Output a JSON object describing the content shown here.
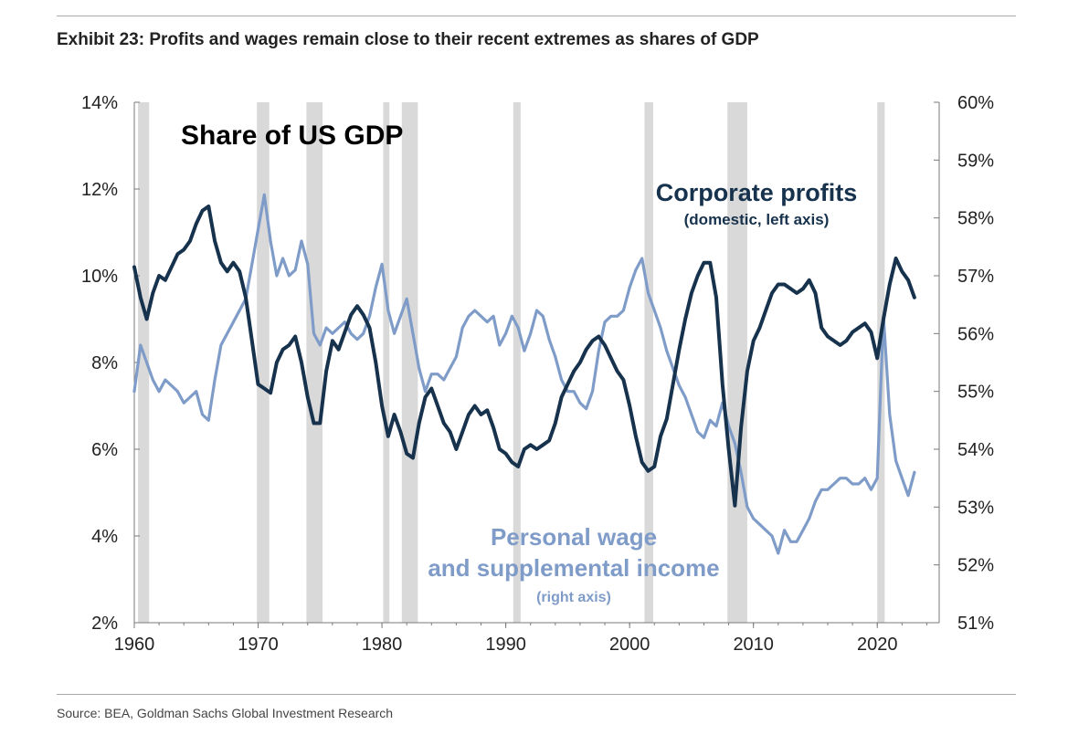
{
  "exhibit_title": "Exhibit 23: Profits and wages remain close to their recent extremes as shares of GDP",
  "source": "Source: BEA, Goldman Sachs Global Investment Research",
  "chart_data": {
    "type": "line",
    "title": "Share of US GDP",
    "x_range": [
      1960,
      2025
    ],
    "x_ticks": [
      "1960",
      "1970",
      "1980",
      "1990",
      "2000",
      "2010",
      "2020"
    ],
    "y_left_range": [
      2,
      14
    ],
    "y_left_ticks": [
      "2%",
      "4%",
      "6%",
      "8%",
      "10%",
      "12%",
      "14%"
    ],
    "y_right_range": [
      51,
      60
    ],
    "y_right_ticks": [
      "51%",
      "52%",
      "53%",
      "54%",
      "55%",
      "56%",
      "57%",
      "58%",
      "59%",
      "60%"
    ],
    "recessions": [
      [
        1960.3,
        1961.2
      ],
      [
        1969.9,
        1970.9
      ],
      [
        1973.9,
        1975.2
      ],
      [
        1980.1,
        1980.6
      ],
      [
        1981.6,
        1982.9
      ],
      [
        1990.6,
        1991.2
      ],
      [
        2001.2,
        2001.9
      ],
      [
        2007.9,
        2009.5
      ],
      [
        2020.0,
        2020.6
      ]
    ],
    "colors": {
      "profits": "#17324d",
      "wages": "#7f9cc9",
      "recession": "#d9d9d9",
      "axis": "#7a7a7a"
    },
    "series": [
      {
        "name": "Corporate profits",
        "sublabel": "(domestic, left axis)",
        "axis": "left",
        "x": [
          1960.0,
          1960.5,
          1961.0,
          1961.5,
          1962.0,
          1962.5,
          1963.0,
          1963.5,
          1964.0,
          1964.5,
          1965.0,
          1965.5,
          1966.0,
          1966.5,
          1967.0,
          1967.5,
          1968.0,
          1968.5,
          1969.0,
          1969.5,
          1970.0,
          1970.5,
          1971.0,
          1971.5,
          1972.0,
          1972.5,
          1973.0,
          1973.5,
          1974.0,
          1974.5,
          1975.0,
          1975.5,
          1976.0,
          1976.5,
          1977.0,
          1977.5,
          1978.0,
          1978.5,
          1979.0,
          1979.5,
          1980.0,
          1980.5,
          1981.0,
          1981.5,
          1982.0,
          1982.5,
          1983.0,
          1983.5,
          1984.0,
          1984.5,
          1985.0,
          1985.5,
          1986.0,
          1986.5,
          1987.0,
          1987.5,
          1988.0,
          1988.5,
          1989.0,
          1989.5,
          1990.0,
          1990.5,
          1991.0,
          1991.5,
          1992.0,
          1992.5,
          1993.0,
          1993.5,
          1994.0,
          1994.5,
          1995.0,
          1995.5,
          1996.0,
          1996.5,
          1997.0,
          1997.5,
          1998.0,
          1998.5,
          1999.0,
          1999.5,
          2000.0,
          2000.5,
          2001.0,
          2001.5,
          2002.0,
          2002.5,
          2003.0,
          2003.5,
          2004.0,
          2004.5,
          2005.0,
          2005.5,
          2006.0,
          2006.5,
          2007.0,
          2007.5,
          2008.0,
          2008.5,
          2009.0,
          2009.5,
          2010.0,
          2010.5,
          2011.0,
          2011.5,
          2012.0,
          2012.5,
          2013.0,
          2013.5,
          2014.0,
          2014.5,
          2015.0,
          2015.5,
          2016.0,
          2016.5,
          2017.0,
          2017.5,
          2018.0,
          2018.5,
          2019.0,
          2019.5,
          2020.0,
          2020.5,
          2021.0,
          2021.5,
          2022.0,
          2022.5,
          2023.0
        ],
        "values": [
          10.2,
          9.5,
          9.0,
          9.6,
          10.0,
          9.9,
          10.2,
          10.5,
          10.6,
          10.8,
          11.2,
          11.5,
          11.6,
          10.8,
          10.3,
          10.1,
          10.3,
          10.1,
          9.5,
          8.5,
          7.5,
          7.4,
          7.3,
          8.0,
          8.3,
          8.4,
          8.6,
          8.0,
          7.2,
          6.6,
          6.6,
          7.8,
          8.5,
          8.3,
          8.7,
          9.1,
          9.3,
          9.1,
          8.8,
          8.0,
          7.0,
          6.3,
          6.8,
          6.4,
          5.9,
          5.8,
          6.6,
          7.2,
          7.4,
          7.0,
          6.6,
          6.4,
          6.0,
          6.4,
          6.8,
          7.0,
          6.8,
          6.9,
          6.5,
          6.0,
          5.9,
          5.7,
          5.6,
          6.0,
          6.1,
          6.0,
          6.1,
          6.2,
          6.6,
          7.2,
          7.5,
          7.8,
          8.0,
          8.3,
          8.5,
          8.6,
          8.4,
          8.1,
          7.8,
          7.6,
          7.0,
          6.3,
          5.7,
          5.5,
          5.6,
          6.3,
          6.7,
          7.5,
          8.3,
          9.0,
          9.6,
          10.0,
          10.3,
          10.3,
          9.5,
          7.5,
          6.0,
          4.7,
          6.5,
          7.8,
          8.5,
          8.8,
          9.2,
          9.6,
          9.8,
          9.8,
          9.7,
          9.6,
          9.7,
          9.9,
          9.6,
          8.8,
          8.6,
          8.5,
          8.4,
          8.5,
          8.7,
          8.8,
          8.9,
          8.7,
          8.1,
          9.0,
          9.8,
          10.4,
          10.1,
          9.9,
          9.5
        ]
      },
      {
        "name": "Personal wage",
        "name_line2": "and supplemental income",
        "sublabel": "(right axis)",
        "axis": "right",
        "x": [
          1960.0,
          1960.5,
          1961.0,
          1961.5,
          1962.0,
          1962.5,
          1963.0,
          1963.5,
          1964.0,
          1964.5,
          1965.0,
          1965.5,
          1966.0,
          1966.5,
          1967.0,
          1967.5,
          1968.0,
          1968.5,
          1969.0,
          1969.5,
          1970.0,
          1970.5,
          1971.0,
          1971.5,
          1972.0,
          1972.5,
          1973.0,
          1973.5,
          1974.0,
          1974.5,
          1975.0,
          1975.5,
          1976.0,
          1976.5,
          1977.0,
          1977.5,
          1978.0,
          1978.5,
          1979.0,
          1979.5,
          1980.0,
          1980.5,
          1981.0,
          1981.5,
          1982.0,
          1982.5,
          1983.0,
          1983.5,
          1984.0,
          1984.5,
          1985.0,
          1985.5,
          1986.0,
          1986.5,
          1987.0,
          1987.5,
          1988.0,
          1988.5,
          1989.0,
          1989.5,
          1990.0,
          1990.5,
          1991.0,
          1991.5,
          1992.0,
          1992.5,
          1993.0,
          1993.5,
          1994.0,
          1994.5,
          1995.0,
          1995.5,
          1996.0,
          1996.5,
          1997.0,
          1997.5,
          1998.0,
          1998.5,
          1999.0,
          1999.5,
          2000.0,
          2000.5,
          2001.0,
          2001.5,
          2002.0,
          2002.5,
          2003.0,
          2003.5,
          2004.0,
          2004.5,
          2005.0,
          2005.5,
          2006.0,
          2006.5,
          2007.0,
          2007.5,
          2008.0,
          2008.5,
          2009.0,
          2009.5,
          2010.0,
          2010.5,
          2011.0,
          2011.5,
          2012.0,
          2012.5,
          2013.0,
          2013.5,
          2014.0,
          2014.5,
          2015.0,
          2015.5,
          2016.0,
          2016.5,
          2017.0,
          2017.5,
          2018.0,
          2018.5,
          2019.0,
          2019.5,
          2020.0,
          2020.5,
          2021.0,
          2021.5,
          2022.0,
          2022.5,
          2023.0
        ],
        "values": [
          55.0,
          55.8,
          55.5,
          55.2,
          55.0,
          55.2,
          55.1,
          55.0,
          54.8,
          54.9,
          55.0,
          54.6,
          54.5,
          55.2,
          55.8,
          56.0,
          56.2,
          56.4,
          56.6,
          57.2,
          57.8,
          58.4,
          57.6,
          57.0,
          57.3,
          57.0,
          57.1,
          57.6,
          57.2,
          56.0,
          55.8,
          56.1,
          56.0,
          56.1,
          56.2,
          56.0,
          55.9,
          56.0,
          56.3,
          56.8,
          57.2,
          56.4,
          56.0,
          56.3,
          56.6,
          56.0,
          55.4,
          55.0,
          55.3,
          55.3,
          55.2,
          55.4,
          55.6,
          56.1,
          56.3,
          56.4,
          56.3,
          56.2,
          56.3,
          55.8,
          56.0,
          56.3,
          56.1,
          55.7,
          56.0,
          56.4,
          56.3,
          55.9,
          55.6,
          55.2,
          55.0,
          55.0,
          54.8,
          54.7,
          55.0,
          55.7,
          56.2,
          56.3,
          56.3,
          56.4,
          56.8,
          57.1,
          57.3,
          56.7,
          56.4,
          56.1,
          55.7,
          55.4,
          55.1,
          54.9,
          54.6,
          54.3,
          54.2,
          54.5,
          54.4,
          54.8,
          54.4,
          54.1,
          53.6,
          53.0,
          52.8,
          52.7,
          52.6,
          52.5,
          52.2,
          52.6,
          52.4,
          52.4,
          52.6,
          52.8,
          53.1,
          53.3,
          53.3,
          53.4,
          53.5,
          53.5,
          53.4,
          53.4,
          53.5,
          53.3,
          53.5,
          56.3,
          54.6,
          53.8,
          53.5,
          53.2,
          53.6
        ]
      }
    ]
  }
}
